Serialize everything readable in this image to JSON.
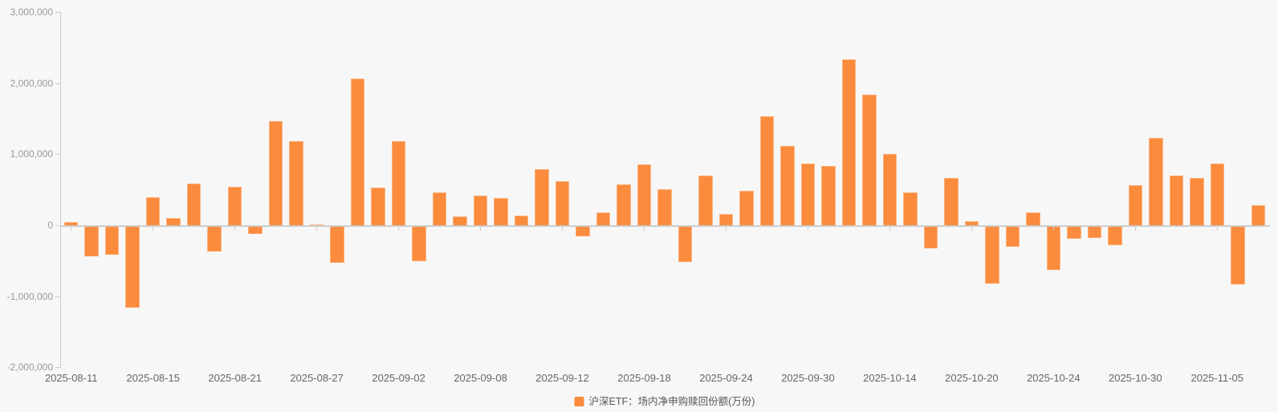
{
  "legend": {
    "label": "沪深ETF：场内净申购赎回份额(万份)"
  },
  "colors": {
    "background": "#f7f7f7",
    "bar": "#fb8b3d",
    "axis_line": "#cccccc",
    "y_label_text": "#999999",
    "x_label_text": "#666666",
    "legend_text": "#555555"
  },
  "chart_data": {
    "type": "bar",
    "title": "",
    "xlabel": "",
    "ylabel": "",
    "series_name": "沪深ETF：场内净申购赎回份额(万份)",
    "unit": "万份",
    "grid": false,
    "legend_position": "bottom-center",
    "ylim": [
      -2000000,
      3000000
    ],
    "y_ticks": [
      3000000,
      2000000,
      1000000,
      0,
      -1000000,
      -2000000
    ],
    "y_tick_labels": [
      "3,000,000",
      "2,000,000",
      "1,000,000",
      "0",
      "-1,000,000",
      "-2,000,000"
    ],
    "x_label_every": 4,
    "visible_x_labels": [
      "2025-08-11",
      "2025-08-15",
      "2025-08-21",
      "2025-08-27",
      "2025-09-02",
      "2025-09-08",
      "2025-09-12",
      "2025-09-18",
      "2025-09-24",
      "2025-09-30",
      "2025-10-14",
      "2025-10-20",
      "2025-10-24",
      "2025-10-30",
      "2025-11-05"
    ],
    "x": [
      "2025-08-11",
      "2025-08-12",
      "2025-08-13",
      "2025-08-14",
      "2025-08-15",
      "2025-08-18",
      "2025-08-19",
      "2025-08-20",
      "2025-08-21",
      "2025-08-22",
      "2025-08-25",
      "2025-08-26",
      "2025-08-27",
      "2025-08-28",
      "2025-08-29",
      "2025-09-01",
      "2025-09-02",
      "2025-09-03",
      "2025-09-04",
      "2025-09-05",
      "2025-09-08",
      "2025-09-09",
      "2025-09-10",
      "2025-09-11",
      "2025-09-12",
      "2025-09-15",
      "2025-09-16",
      "2025-09-17",
      "2025-09-18",
      "2025-09-19",
      "2025-09-22",
      "2025-09-23",
      "2025-09-24",
      "2025-09-25",
      "2025-09-26",
      "2025-09-29",
      "2025-09-30",
      "2025-10-09",
      "2025-10-10",
      "2025-10-13",
      "2025-10-14",
      "2025-10-15",
      "2025-10-16",
      "2025-10-17",
      "2025-10-20",
      "2025-10-21",
      "2025-10-22",
      "2025-10-23",
      "2025-10-24",
      "2025-10-27",
      "2025-10-28",
      "2025-10-29",
      "2025-10-30",
      "2025-10-31",
      "2025-11-03",
      "2025-11-04",
      "2025-11-05",
      "2025-11-06",
      "2025-11-07"
    ],
    "values": [
      50000,
      -420000,
      -395000,
      -1140000,
      395000,
      105000,
      585000,
      -350000,
      545000,
      -105000,
      1470000,
      1185000,
      15000,
      -505000,
      2060000,
      535000,
      1180000,
      -490000,
      460000,
      125000,
      415000,
      385000,
      130000,
      785000,
      620000,
      -130000,
      175000,
      575000,
      855000,
      505000,
      -500000,
      695000,
      160000,
      480000,
      1535000,
      1120000,
      870000,
      835000,
      2330000,
      1840000,
      1005000,
      460000,
      -305000,
      670000,
      55000,
      -800000,
      -280000,
      180000,
      -610000,
      -170000,
      -160000,
      -255000,
      565000,
      1225000,
      695000,
      670000,
      870000,
      -810000,
      285000
    ]
  }
}
